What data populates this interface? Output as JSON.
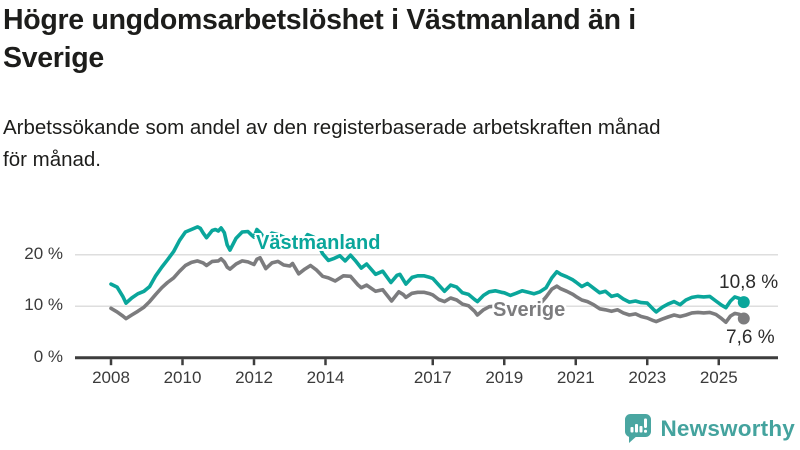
{
  "header": {
    "title_lines": [
      "Högre ungdomsarbetslöshet i Västmanland än i",
      "Sverige"
    ],
    "subtitle_lines": [
      "Arbetssökande som andel av den registerbaserade arbetskraften månad",
      "för månad."
    ]
  },
  "footer": {
    "brand": "Newsworthy"
  },
  "colors": {
    "accent_teal": "#0aa69b",
    "series_gray": "#7c7c7e",
    "logo_teal": "#4aa6a1",
    "axis": "#3d3d3d",
    "grid": "#dedede",
    "text": "#1d1d1b"
  },
  "chart_data": {
    "type": "line",
    "title": "Högre ungdomsarbetslöshet i Västmanland än i Sverige",
    "subtitle": "Arbetssökande som andel av den registerbaserade arbetskraften månad för månad.",
    "unit": "%",
    "grid": "horizontal",
    "legend_position": "inline-labels",
    "x_range": [
      2007,
      2025.7
    ],
    "ylim": [
      0,
      27
    ],
    "x_ticks": [
      2008,
      2010,
      2012,
      2014,
      2017,
      2019,
      2021,
      2023,
      2025
    ],
    "y_ticks": [
      {
        "value": 0,
        "label": "0 %"
      },
      {
        "value": 10,
        "label": "10 %"
      },
      {
        "value": 20,
        "label": "20 %"
      }
    ],
    "series": [
      {
        "name": "Västmanland",
        "color": "#0aa69b",
        "end_label": "10,8 %",
        "end_value": 10.8,
        "points": [
          [
            2008.0,
            14.3
          ],
          [
            2008.17,
            13.7
          ],
          [
            2008.33,
            11.9
          ],
          [
            2008.42,
            10.6
          ],
          [
            2008.58,
            11.6
          ],
          [
            2008.75,
            12.4
          ],
          [
            2008.92,
            12.9
          ],
          [
            2009.08,
            13.8
          ],
          [
            2009.25,
            15.9
          ],
          [
            2009.42,
            17.6
          ],
          [
            2009.58,
            19.0
          ],
          [
            2009.75,
            20.6
          ],
          [
            2009.92,
            22.8
          ],
          [
            2010.08,
            24.4
          ],
          [
            2010.25,
            24.9
          ],
          [
            2010.42,
            25.4
          ],
          [
            2010.5,
            25.1
          ],
          [
            2010.58,
            24.2
          ],
          [
            2010.67,
            23.3
          ],
          [
            2010.83,
            24.7
          ],
          [
            2010.92,
            24.9
          ],
          [
            2011.0,
            24.6
          ],
          [
            2011.08,
            25.2
          ],
          [
            2011.17,
            24.3
          ],
          [
            2011.25,
            21.9
          ],
          [
            2011.33,
            20.9
          ],
          [
            2011.5,
            23.2
          ],
          [
            2011.67,
            24.4
          ],
          [
            2011.83,
            24.5
          ],
          [
            2011.92,
            23.9
          ],
          [
            2012.0,
            23.4
          ],
          [
            2012.08,
            24.9
          ],
          [
            2012.17,
            24.3
          ],
          [
            2012.33,
            22.9
          ],
          [
            2012.5,
            24.2
          ],
          [
            2012.67,
            23.9
          ],
          [
            2012.83,
            23.4
          ],
          [
            2013.0,
            22.0
          ],
          [
            2013.17,
            22.6
          ],
          [
            2013.3,
            21.8
          ],
          [
            2013.5,
            23.9
          ],
          [
            2013.67,
            23.4
          ],
          [
            2013.83,
            21.5
          ],
          [
            2013.92,
            20.2
          ],
          [
            2014.08,
            18.9
          ],
          [
            2014.25,
            19.3
          ],
          [
            2014.4,
            19.8
          ],
          [
            2014.55,
            18.8
          ],
          [
            2014.7,
            19.9
          ],
          [
            2014.83,
            18.9
          ],
          [
            2015.0,
            17.4
          ],
          [
            2015.15,
            18.2
          ],
          [
            2015.4,
            16.2
          ],
          [
            2015.6,
            16.8
          ],
          [
            2015.83,
            14.6
          ],
          [
            2016.0,
            16.0
          ],
          [
            2016.08,
            16.2
          ],
          [
            2016.25,
            14.3
          ],
          [
            2016.42,
            15.6
          ],
          [
            2016.58,
            15.9
          ],
          [
            2016.75,
            15.9
          ],
          [
            2016.92,
            15.6
          ],
          [
            2017.0,
            15.4
          ],
          [
            2017.17,
            14.1
          ],
          [
            2017.33,
            12.9
          ],
          [
            2017.5,
            14.1
          ],
          [
            2017.67,
            13.7
          ],
          [
            2017.83,
            12.6
          ],
          [
            2018.0,
            12.3
          ],
          [
            2018.17,
            11.3
          ],
          [
            2018.25,
            10.9
          ],
          [
            2018.42,
            12.1
          ],
          [
            2018.58,
            12.8
          ],
          [
            2018.75,
            13.0
          ],
          [
            2018.92,
            12.7
          ],
          [
            2019.0,
            12.6
          ],
          [
            2019.17,
            12.1
          ],
          [
            2019.33,
            12.5
          ],
          [
            2019.5,
            13.0
          ],
          [
            2019.67,
            12.7
          ],
          [
            2019.83,
            12.4
          ],
          [
            2020.0,
            12.8
          ],
          [
            2020.17,
            13.6
          ],
          [
            2020.33,
            15.5
          ],
          [
            2020.47,
            16.7
          ],
          [
            2020.58,
            16.2
          ],
          [
            2020.75,
            15.7
          ],
          [
            2020.92,
            15.1
          ],
          [
            2021.0,
            14.7
          ],
          [
            2021.17,
            13.8
          ],
          [
            2021.33,
            14.4
          ],
          [
            2021.5,
            13.5
          ],
          [
            2021.67,
            12.6
          ],
          [
            2021.83,
            12.9
          ],
          [
            2022.0,
            11.9
          ],
          [
            2022.17,
            12.2
          ],
          [
            2022.33,
            11.4
          ],
          [
            2022.5,
            10.8
          ],
          [
            2022.67,
            11.0
          ],
          [
            2022.83,
            10.7
          ],
          [
            2023.0,
            10.6
          ],
          [
            2023.17,
            9.4
          ],
          [
            2023.25,
            8.9
          ],
          [
            2023.42,
            9.8
          ],
          [
            2023.58,
            10.4
          ],
          [
            2023.75,
            10.9
          ],
          [
            2023.92,
            10.3
          ],
          [
            2024.08,
            11.2
          ],
          [
            2024.25,
            11.7
          ],
          [
            2024.42,
            11.9
          ],
          [
            2024.58,
            11.8
          ],
          [
            2024.75,
            11.9
          ],
          [
            2024.92,
            11.0
          ],
          [
            2025.08,
            10.2
          ],
          [
            2025.2,
            9.7
          ],
          [
            2025.33,
            11.0
          ],
          [
            2025.45,
            11.8
          ],
          [
            2025.58,
            11.5
          ],
          [
            2025.7,
            10.8
          ]
        ]
      },
      {
        "name": "Sverige",
        "color": "#7c7c7e",
        "end_label": "7,6 %",
        "end_value": 7.6,
        "points": [
          [
            2008.0,
            9.6
          ],
          [
            2008.17,
            8.9
          ],
          [
            2008.33,
            8.1
          ],
          [
            2008.42,
            7.6
          ],
          [
            2008.58,
            8.3
          ],
          [
            2008.75,
            9.0
          ],
          [
            2008.92,
            9.8
          ],
          [
            2009.08,
            10.9
          ],
          [
            2009.25,
            12.3
          ],
          [
            2009.42,
            13.6
          ],
          [
            2009.58,
            14.6
          ],
          [
            2009.75,
            15.5
          ],
          [
            2009.92,
            16.8
          ],
          [
            2010.08,
            17.9
          ],
          [
            2010.25,
            18.5
          ],
          [
            2010.42,
            18.8
          ],
          [
            2010.58,
            18.4
          ],
          [
            2010.67,
            17.9
          ],
          [
            2010.83,
            18.7
          ],
          [
            2011.0,
            18.8
          ],
          [
            2011.08,
            19.2
          ],
          [
            2011.17,
            18.6
          ],
          [
            2011.25,
            17.6
          ],
          [
            2011.33,
            17.2
          ],
          [
            2011.5,
            18.2
          ],
          [
            2011.67,
            18.8
          ],
          [
            2011.83,
            18.6
          ],
          [
            2012.0,
            18.1
          ],
          [
            2012.08,
            19.1
          ],
          [
            2012.17,
            19.4
          ],
          [
            2012.33,
            17.3
          ],
          [
            2012.5,
            18.4
          ],
          [
            2012.67,
            18.7
          ],
          [
            2012.83,
            18.0
          ],
          [
            2013.0,
            17.8
          ],
          [
            2013.08,
            18.3
          ],
          [
            2013.25,
            16.3
          ],
          [
            2013.42,
            17.2
          ],
          [
            2013.58,
            17.9
          ],
          [
            2013.75,
            17.0
          ],
          [
            2013.92,
            15.8
          ],
          [
            2014.08,
            15.5
          ],
          [
            2014.27,
            14.9
          ],
          [
            2014.5,
            15.9
          ],
          [
            2014.7,
            15.8
          ],
          [
            2014.9,
            14.2
          ],
          [
            2015.0,
            13.6
          ],
          [
            2015.15,
            14.1
          ],
          [
            2015.4,
            12.9
          ],
          [
            2015.6,
            13.2
          ],
          [
            2015.85,
            11.0
          ],
          [
            2016.05,
            12.8
          ],
          [
            2016.17,
            12.3
          ],
          [
            2016.25,
            11.7
          ],
          [
            2016.42,
            12.5
          ],
          [
            2016.58,
            12.7
          ],
          [
            2016.75,
            12.7
          ],
          [
            2016.92,
            12.4
          ],
          [
            2017.0,
            12.2
          ],
          [
            2017.17,
            11.3
          ],
          [
            2017.33,
            10.9
          ],
          [
            2017.5,
            11.6
          ],
          [
            2017.67,
            11.2
          ],
          [
            2017.83,
            10.4
          ],
          [
            2018.0,
            10.1
          ],
          [
            2018.17,
            9.0
          ],
          [
            2018.25,
            8.3
          ],
          [
            2018.42,
            9.3
          ],
          [
            2018.58,
            9.9
          ],
          [
            2018.75,
            10.0
          ],
          [
            2018.92,
            9.8
          ],
          [
            2019.0,
            9.8
          ],
          [
            2019.17,
            9.4
          ],
          [
            2019.33,
            9.8
          ],
          [
            2019.5,
            10.2
          ],
          [
            2019.67,
            10.0
          ],
          [
            2019.83,
            9.9
          ],
          [
            2020.0,
            10.4
          ],
          [
            2020.17,
            11.8
          ],
          [
            2020.33,
            13.3
          ],
          [
            2020.47,
            13.9
          ],
          [
            2020.58,
            13.4
          ],
          [
            2020.75,
            12.9
          ],
          [
            2020.92,
            12.3
          ],
          [
            2021.0,
            11.9
          ],
          [
            2021.17,
            11.2
          ],
          [
            2021.33,
            10.9
          ],
          [
            2021.5,
            10.3
          ],
          [
            2021.67,
            9.5
          ],
          [
            2021.83,
            9.3
          ],
          [
            2022.0,
            9.0
          ],
          [
            2022.17,
            9.3
          ],
          [
            2022.33,
            8.7
          ],
          [
            2022.5,
            8.3
          ],
          [
            2022.67,
            8.5
          ],
          [
            2022.83,
            8.0
          ],
          [
            2023.0,
            7.7
          ],
          [
            2023.17,
            7.2
          ],
          [
            2023.25,
            7.0
          ],
          [
            2023.42,
            7.5
          ],
          [
            2023.58,
            7.9
          ],
          [
            2023.75,
            8.3
          ],
          [
            2023.92,
            8.0
          ],
          [
            2024.08,
            8.3
          ],
          [
            2024.25,
            8.7
          ],
          [
            2024.42,
            8.8
          ],
          [
            2024.58,
            8.7
          ],
          [
            2024.75,
            8.8
          ],
          [
            2024.92,
            8.4
          ],
          [
            2025.08,
            7.6
          ],
          [
            2025.2,
            6.9
          ],
          [
            2025.33,
            8.1
          ],
          [
            2025.45,
            8.6
          ],
          [
            2025.58,
            8.4
          ],
          [
            2025.7,
            7.6
          ]
        ]
      }
    ]
  }
}
